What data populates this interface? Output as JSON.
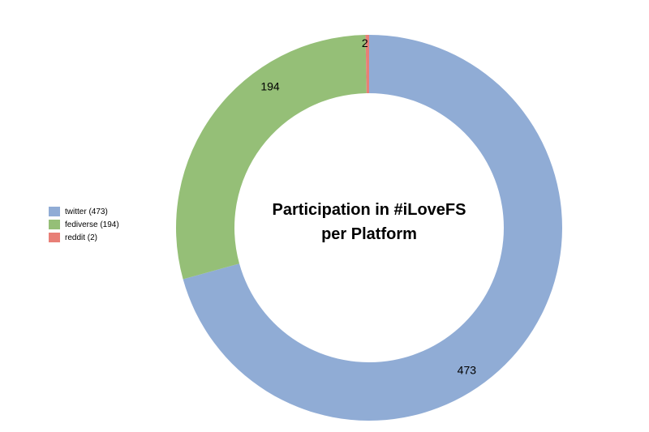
{
  "chart_data": {
    "type": "pie",
    "variant": "donut",
    "title_lines": [
      "Participation in #iLoveFS",
      "per Platform"
    ],
    "categories": [
      "twitter",
      "fediverse",
      "reddit"
    ],
    "values": [
      473,
      194,
      2
    ],
    "data_labels": [
      "473",
      "194",
      "2"
    ],
    "colors": [
      "#90acd5",
      "#95bf77",
      "#e87f77"
    ],
    "legend": {
      "placement": "left",
      "entries": [
        "twitter (473)",
        "fediverse (194)",
        "reddit (2)"
      ]
    }
  }
}
